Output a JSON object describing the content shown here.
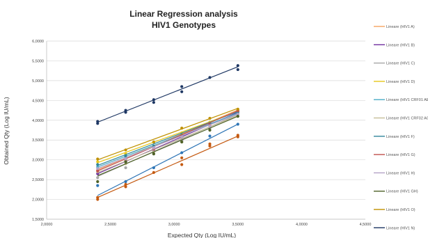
{
  "chart_data": {
    "type": "scatter",
    "title_line1": "Linear Regression analysis",
    "title_line2": "HIV1 Genotypes",
    "xlabel": "Expected Qty (Log IU/mL)",
    "ylabel": "Obtained Qty (Log IU/mL)",
    "xlim": [
      2.0,
      4.5
    ],
    "ylim": [
      1.5,
      6.0
    ],
    "x_ticks": [
      "2,0000",
      "2,5000",
      "3,0000",
      "3,5000",
      "4,0000",
      "4,5000"
    ],
    "y_ticks": [
      "1,5000",
      "2,0000",
      "2,5000",
      "3,0000",
      "3,5000",
      "4,0000",
      "4,5000",
      "5,0000",
      "5,5000",
      "6,0000"
    ],
    "grid": "horizontal",
    "legend_position": "right",
    "x_levels": [
      2.4,
      2.62,
      2.84,
      3.06,
      3.28,
      3.5
    ],
    "series": [
      {
        "name": "Lineare (HIV1 A)",
        "color": "#f4a460",
        "line": [
          2.75,
          4.26
        ],
        "points": [
          [
            2.4,
            2.74
          ],
          [
            2.62,
            2.98
          ],
          [
            2.84,
            3.25
          ],
          [
            3.06,
            3.55
          ],
          [
            3.28,
            3.85
          ],
          [
            3.5,
            4.25
          ]
        ]
      },
      {
        "name": "Lineare (HIV1 B)",
        "color": "#7030a0",
        "line": [
          2.65,
          4.2
        ],
        "points": [
          [
            2.4,
            2.65
          ],
          [
            2.62,
            2.95
          ],
          [
            2.84,
            3.22
          ],
          [
            3.06,
            3.5
          ],
          [
            3.28,
            3.82
          ],
          [
            3.5,
            4.2
          ]
        ]
      },
      {
        "name": "Lineare (HIV1 C)",
        "color": "#a6a6a6",
        "line": [
          2.58,
          4.15
        ],
        "points": [
          [
            2.4,
            2.55
          ],
          [
            2.62,
            2.8
          ],
          [
            2.84,
            3.15
          ],
          [
            3.06,
            3.48
          ],
          [
            3.28,
            3.8
          ],
          [
            3.5,
            4.15
          ]
        ]
      },
      {
        "name": "Lineare (HIV1 D)",
        "color": "#e6c619",
        "line": [
          2.93,
          4.22
        ],
        "points": [
          [
            2.4,
            2.95
          ],
          [
            2.62,
            3.15
          ],
          [
            2.84,
            3.45
          ],
          [
            3.06,
            3.68
          ],
          [
            3.28,
            3.95
          ],
          [
            3.5,
            4.2
          ]
        ]
      },
      {
        "name": "Lineare (HIV1 CRF01 AE)",
        "color": "#4bacc6",
        "line": [
          2.82,
          4.18
        ],
        "points": [
          [
            2.4,
            2.82
          ],
          [
            2.62,
            3.05
          ],
          [
            2.84,
            3.3
          ],
          [
            3.06,
            3.6
          ],
          [
            3.28,
            3.9
          ],
          [
            3.5,
            4.18
          ]
        ]
      },
      {
        "name": "Lineare (HIV1 CRF02 AG)",
        "color": "#c4bd97",
        "line": [
          2.68,
          4.12
        ],
        "points": [
          [
            2.4,
            2.7
          ],
          [
            2.62,
            2.9
          ],
          [
            2.84,
            3.2
          ],
          [
            3.06,
            3.45
          ],
          [
            3.28,
            3.75
          ],
          [
            3.5,
            4.1
          ]
        ]
      },
      {
        "name": "Lineare (HIV1 F)",
        "color": "#31869b",
        "line": [
          2.86,
          4.22
        ],
        "points": [
          [
            2.4,
            2.88
          ],
          [
            2.62,
            3.1
          ],
          [
            2.84,
            3.35
          ],
          [
            3.06,
            3.62
          ],
          [
            3.28,
            3.92
          ],
          [
            3.5,
            4.22
          ]
        ]
      },
      {
        "name": "Lineare (HIV1 G)",
        "color": "#c0504d",
        "line": [
          2.72,
          4.24
        ],
        "points": [
          [
            2.4,
            2.72
          ],
          [
            2.62,
            3.0
          ],
          [
            2.84,
            3.28
          ],
          [
            3.06,
            3.58
          ],
          [
            3.28,
            3.88
          ],
          [
            3.5,
            4.24
          ]
        ]
      },
      {
        "name": "Lineare (HIV1 H)",
        "color": "#b3a2c7",
        "line": [
          2.78,
          4.16
        ],
        "points": [
          [
            2.4,
            2.78
          ],
          [
            2.62,
            3.02
          ],
          [
            2.84,
            3.3
          ],
          [
            3.06,
            3.58
          ],
          [
            3.28,
            3.85
          ],
          [
            3.5,
            4.15
          ]
        ]
      },
      {
        "name": "Lineare (HIV1 GH)",
        "color": "#4f6228",
        "line": [
          2.6,
          4.1
        ],
        "points": [
          [
            2.4,
            2.45
          ],
          [
            2.62,
            2.95
          ],
          [
            2.84,
            3.15
          ],
          [
            3.06,
            3.45
          ],
          [
            3.28,
            3.75
          ],
          [
            3.5,
            4.1
          ]
        ]
      },
      {
        "name": "Lineare (HIV1 O)",
        "color": "#c09100",
        "line": [
          3.0,
          4.3
        ],
        "points": [
          [
            2.4,
            3.02
          ],
          [
            2.62,
            3.25
          ],
          [
            2.84,
            3.45
          ],
          [
            3.06,
            3.8
          ],
          [
            3.28,
            4.05
          ],
          [
            3.5,
            4.28
          ]
        ]
      },
      {
        "name": "Lineare (HIV1 N)",
        "color": "#1f3864",
        "line": [
          3.95,
          5.35
        ],
        "points": [
          [
            2.4,
            3.97
          ],
          [
            2.4,
            3.92
          ],
          [
            2.62,
            4.25
          ],
          [
            2.62,
            4.2
          ],
          [
            2.84,
            4.52
          ],
          [
            2.84,
            4.45
          ],
          [
            3.06,
            4.85
          ],
          [
            3.06,
            4.72
          ],
          [
            3.28,
            5.08
          ],
          [
            3.5,
            5.38
          ],
          [
            3.5,
            5.28
          ]
        ]
      }
    ],
    "extra_series": [
      {
        "color": "#2e75b6",
        "line": [
          2.1,
          3.9
        ],
        "points": [
          [
            2.4,
            2.35
          ],
          [
            2.62,
            2.45
          ],
          [
            2.84,
            2.8
          ],
          [
            3.06,
            3.18
          ],
          [
            3.28,
            3.6
          ],
          [
            3.5,
            3.9
          ]
        ]
      },
      {
        "color": "#c55a11",
        "line": [
          2.05,
          3.6
        ],
        "points": [
          [
            2.4,
            2.05
          ],
          [
            2.4,
            2.0
          ],
          [
            2.62,
            2.38
          ],
          [
            2.62,
            2.32
          ],
          [
            2.84,
            2.68
          ],
          [
            3.06,
            2.88
          ],
          [
            3.06,
            3.05
          ],
          [
            3.28,
            3.35
          ],
          [
            3.28,
            3.4
          ],
          [
            3.5,
            3.58
          ],
          [
            3.5,
            3.62
          ]
        ]
      }
    ]
  }
}
